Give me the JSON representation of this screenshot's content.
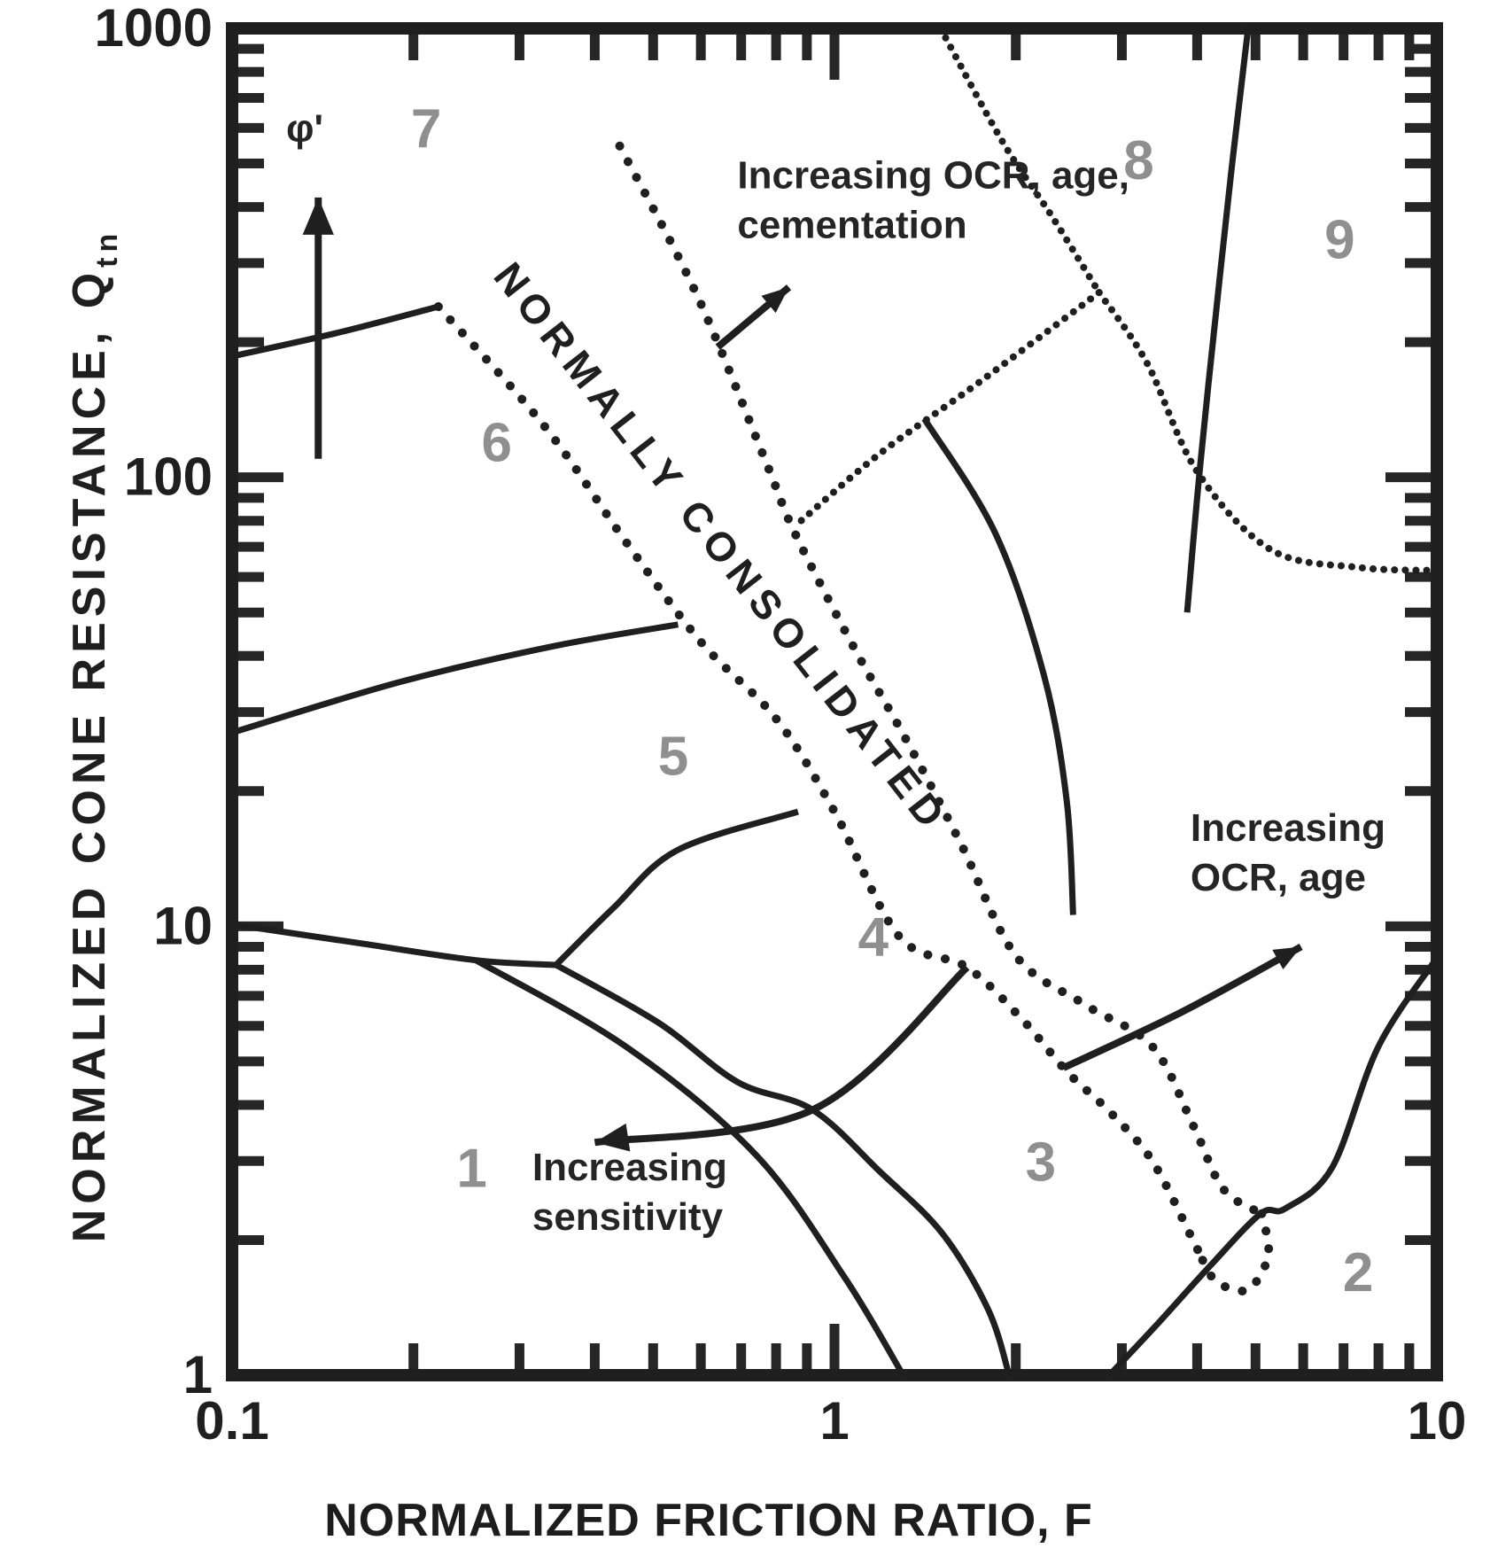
{
  "figure": {
    "background": "#ffffff",
    "ink": "#1f1f1f",
    "zone_label_color": "#8f8f8f",
    "annotation_color": "#252525"
  },
  "chart_data": {
    "type": "line",
    "subtype": "CPT soil behaviour type classification chart (Qtn vs F), 9 zones",
    "title": "",
    "xlabel": "NORMALIZED FRICTION RATIO, F",
    "ylabel": "NORMALIZED CONE RESISTANCE, Q",
    "ylabel_subscript": "tn",
    "x_axis": {
      "min": 0.1,
      "max": 10,
      "scale": "log"
    },
    "y_axis": {
      "min": 1,
      "max": 1000,
      "scale": "log"
    },
    "grid": false,
    "x_ticks": [
      {
        "v": 0.1,
        "label": "0.1"
      },
      {
        "v": 1,
        "label": "1"
      },
      {
        "v": 10,
        "label": "10"
      }
    ],
    "y_ticks": [
      {
        "v": 1,
        "label": "1"
      },
      {
        "v": 10,
        "label": "10"
      },
      {
        "v": 100,
        "label": "100"
      },
      {
        "v": 1000,
        "label": "1000"
      }
    ],
    "zone_labels": [
      {
        "n": "1",
        "F": 0.25,
        "Q": 2.9
      },
      {
        "n": "2",
        "F": 7.4,
        "Q": 1.7
      },
      {
        "n": "3",
        "F": 2.2,
        "Q": 3.0
      },
      {
        "n": "4",
        "F": 1.16,
        "Q": 9.5
      },
      {
        "n": "5",
        "F": 0.54,
        "Q": 24
      },
      {
        "n": "6",
        "F": 0.275,
        "Q": 120
      },
      {
        "n": "7",
        "F": 0.21,
        "Q": 600
      },
      {
        "n": "8",
        "F": 3.2,
        "Q": 510
      },
      {
        "n": "9",
        "F": 6.9,
        "Q": 340
      }
    ],
    "band_label": {
      "text": "NORMALLY CONSOLIDATED",
      "F": 0.27,
      "Q": 280,
      "angle_deg": 52
    },
    "boundaries": [
      {
        "id": "zone6-7",
        "style": "solid",
        "pts": [
          [
            0.1,
            186
          ],
          [
            0.15,
            210
          ],
          [
            0.22,
            240
          ]
        ]
      },
      {
        "id": "zone5-6",
        "style": "solid",
        "pts": [
          [
            0.1,
            27
          ],
          [
            0.19,
            35
          ],
          [
            0.34,
            42
          ],
          [
            0.55,
            47
          ]
        ]
      },
      {
        "id": "zone4-5-stem",
        "style": "solid",
        "pts": [
          [
            0.1,
            10.1
          ],
          [
            0.16,
            9.2
          ],
          [
            0.254,
            8.4
          ],
          [
            0.345,
            8.2
          ]
        ]
      },
      {
        "id": "zone4-5",
        "style": "solid",
        "pts": [
          [
            0.345,
            8.2
          ],
          [
            0.43,
            11
          ],
          [
            0.55,
            14.8
          ],
          [
            0.87,
            18
          ]
        ]
      },
      {
        "id": "zone1",
        "style": "solid",
        "pts": [
          [
            0.254,
            8.4
          ],
          [
            0.45,
            5.4
          ],
          [
            0.74,
            3.1
          ],
          [
            1.04,
            1.65
          ],
          [
            1.3,
            1.0
          ]
        ]
      },
      {
        "id": "zone3-4",
        "style": "solid",
        "pts": [
          [
            0.345,
            8.2
          ],
          [
            0.51,
            6.1
          ],
          [
            0.69,
            4.5
          ],
          [
            0.92,
            3.9
          ],
          [
            1.19,
            2.84
          ],
          [
            1.51,
            2.07
          ],
          [
            1.8,
            1.4
          ],
          [
            1.95,
            1.0
          ]
        ]
      },
      {
        "id": "zone2-3",
        "style": "solid",
        "pts": [
          [
            10,
            8.5
          ],
          [
            8.0,
            5.4
          ],
          [
            6.7,
            2.9
          ],
          [
            5.6,
            2.35
          ],
          [
            5.1,
            2.29
          ],
          [
            4.2,
            1.75
          ],
          [
            3.4,
            1.28
          ],
          [
            2.86,
            1.0
          ]
        ]
      },
      {
        "id": "zone7-8",
        "style": "beaded",
        "pts": [
          [
            1.5,
            1000
          ],
          [
            1.9,
            560
          ],
          [
            2.3,
            380
          ],
          [
            2.75,
            258
          ]
        ]
      },
      {
        "id": "zone8-lower",
        "style": "beaded",
        "pts": [
          [
            2.75,
            258
          ],
          [
            1.73,
            162
          ],
          [
            1.19,
            113
          ],
          [
            0.88,
            80
          ]
        ]
      },
      {
        "id": "zone9-lower",
        "style": "beaded",
        "pts": [
          [
            2.75,
            258
          ],
          [
            3.3,
            180
          ],
          [
            4.0,
            103
          ],
          [
            5.3,
            69
          ],
          [
            7.4,
            63
          ],
          [
            10,
            62
          ]
        ]
      },
      {
        "id": "zone8-9",
        "style": "solid",
        "pts": [
          [
            4.86,
            1000
          ],
          [
            4.55,
            470
          ],
          [
            4.18,
            163
          ],
          [
            4.0,
            90
          ],
          [
            3.85,
            50
          ]
        ]
      },
      {
        "id": "zone3-right",
        "style": "solid",
        "pts": [
          [
            1.41,
            135
          ],
          [
            1.85,
            75
          ],
          [
            2.23,
            36
          ],
          [
            2.43,
            19
          ],
          [
            2.49,
            10.6
          ]
        ]
      },
      {
        "id": "nc-band-left",
        "style": "dotted",
        "pts": [
          [
            0.22,
            240
          ],
          [
            0.33,
            130
          ],
          [
            0.45,
            72
          ],
          [
            0.6,
            43
          ],
          [
            0.8,
            29
          ],
          [
            1.0,
            18
          ],
          [
            1.28,
            9.5
          ],
          [
            1.66,
            8.1
          ],
          [
            2.05,
            6.2
          ],
          [
            2.43,
            4.75
          ],
          [
            2.87,
            3.85
          ],
          [
            3.37,
            3.0
          ],
          [
            3.9,
            2.05
          ],
          [
            4.04,
            1.86
          ]
        ]
      },
      {
        "id": "nc-band-right",
        "style": "dotted",
        "pts": [
          [
            0.44,
            547
          ],
          [
            0.59,
            256
          ],
          [
            0.77,
            108
          ],
          [
            0.86,
            75
          ],
          [
            1.08,
            41.5
          ],
          [
            1.31,
            26.3
          ],
          [
            1.62,
            15.3
          ],
          [
            2.0,
            8.6
          ],
          [
            2.6,
            6.7
          ],
          [
            3.37,
            5.4
          ],
          [
            3.94,
            3.6
          ],
          [
            4.42,
            2.6
          ],
          [
            5.12,
            2.29
          ]
        ]
      },
      {
        "id": "nc-band-tip",
        "style": "dotted",
        "pts": [
          [
            5.12,
            2.29
          ],
          [
            5.25,
            1.85
          ],
          [
            4.85,
            1.55
          ],
          [
            4.3,
            1.62
          ],
          [
            4.04,
            1.86
          ]
        ]
      }
    ],
    "annotations": [
      {
        "id": "ocr-cementation",
        "lines": [
          "Increasing OCR, age,",
          "cementation"
        ],
        "F": 0.69,
        "Q": 440,
        "arrow": {
          "pts": [
            [
              0.64,
              195
            ],
            [
              0.84,
              265
            ]
          ],
          "head": 30
        }
      },
      {
        "id": "ocr-age",
        "lines": [
          "Increasing",
          "OCR, age"
        ],
        "F": 3.9,
        "Q": 15.5,
        "arrow": {
          "pts": [
            [
              2.4,
              4.84
            ],
            [
              3.77,
              6.44
            ],
            [
              5.95,
              9.0
            ]
          ],
          "head": 30
        }
      },
      {
        "id": "sensitivity",
        "lines": [
          "Increasing",
          "sensitivity"
        ],
        "F": 0.315,
        "Q": 2.72,
        "arrow": {
          "pts": [
            [
              1.66,
              8.1
            ],
            [
              0.92,
              3.9
            ],
            [
              0.4,
              3.3
            ]
          ],
          "head": 38
        }
      },
      {
        "id": "phi",
        "lines": [
          "φ'"
        ],
        "F": 0.132,
        "Q": 560,
        "arrow": {
          "pts": [
            [
              0.139,
              110
            ],
            [
              0.139,
              420
            ]
          ],
          "head": 42
        }
      }
    ]
  }
}
